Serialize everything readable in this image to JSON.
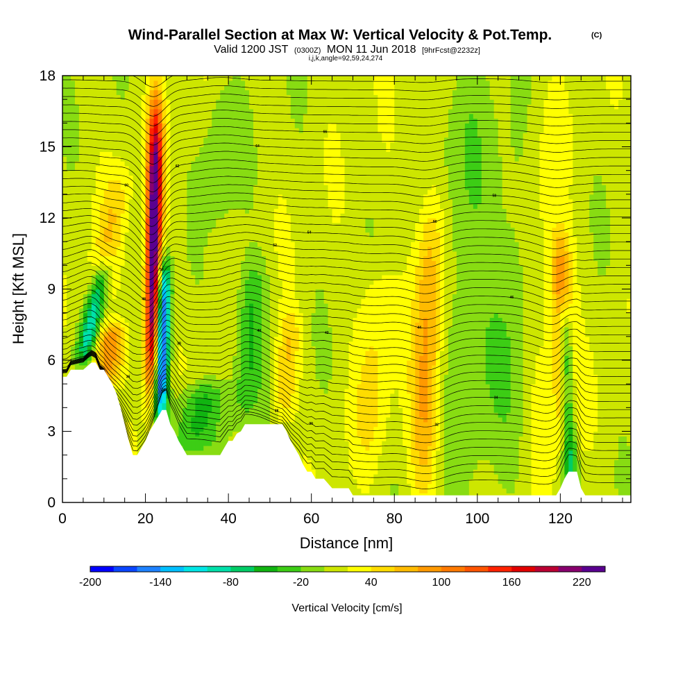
{
  "figure": {
    "title": "Wind-Parallel Section at Max W: Vertical Velocity & Pot.Temp.",
    "title_tag": "(C)",
    "valid_line": {
      "prefix": "Valid 1200 JST",
      "utc": "(0300Z)",
      "date": "MON 11 Jun 2018",
      "forecast": "[9hrFcst@2232z]"
    },
    "grid_info": "i,j,k,angle=92,59,24,274"
  },
  "chart_data": {
    "type": "heatmap",
    "xlabel": "Distance [nm]",
    "ylabel": "Height [Kft MSL]",
    "xlim": [
      0,
      137
    ],
    "ylim": [
      0,
      18
    ],
    "x_ticks": [
      "0",
      "20",
      "40",
      "60",
      "80",
      "100",
      "120"
    ],
    "x_tick_values": [
      0,
      20,
      40,
      60,
      80,
      100,
      120
    ],
    "y_ticks": [
      "0",
      "3",
      "6",
      "9",
      "12",
      "15",
      "18"
    ],
    "y_tick_values": [
      0,
      3,
      6,
      9,
      12,
      15,
      18
    ],
    "x_minor_step": 5,
    "y_minor_step": 1,
    "fill": {
      "variable": "Vertical Velocity",
      "units": "cm/s",
      "background_value": 10,
      "features": [
        {
          "kind": "updraft",
          "x_bottom": 21.5,
          "x_top": 22.5,
          "y_bottom": 5,
          "y_top": 16.5,
          "w": 240,
          "sx": 1.3
        },
        {
          "kind": "downdraft",
          "x_bottom": 23.5,
          "x_top": 24.5,
          "y_bottom": 3.5,
          "y_top": 10,
          "w": -200,
          "sx": 1.2
        },
        {
          "kind": "updraft",
          "x_bottom": 122,
          "x_top": 120,
          "y_bottom": 2,
          "y_top": 11,
          "w": 120,
          "sx": 1.8
        },
        {
          "kind": "downdraft",
          "x_bottom": 122.5,
          "x_top": 121,
          "y_bottom": 0.8,
          "y_top": 8.5,
          "w": -150,
          "sx": 1.3
        },
        {
          "kind": "downdraft",
          "x_bottom": 5,
          "x_top": 10,
          "y_bottom": 6,
          "y_top": 10,
          "w": -110,
          "sx": 1.6
        },
        {
          "kind": "updraft",
          "x_bottom": 10,
          "x_top": 12,
          "y_bottom": 5,
          "y_top": 7.5,
          "w": 90,
          "sx": 2.5
        },
        {
          "kind": "updraft",
          "x_bottom": 8,
          "x_top": 14,
          "y_bottom": 8,
          "y_top": 14,
          "w": 40,
          "sx": 2.5
        },
        {
          "kind": "downdraft",
          "x_bottom": 30,
          "x_top": 34,
          "y_bottom": 2,
          "y_top": 5,
          "w": -60,
          "sx": 4
        },
        {
          "kind": "downdraft",
          "x_bottom": 44,
          "x_top": 46,
          "y_bottom": 3.5,
          "y_top": 10,
          "w": -55,
          "sx": 2.5
        },
        {
          "kind": "updraft",
          "x_bottom": 53,
          "x_top": 55,
          "y_bottom": 3.5,
          "y_top": 8,
          "w": 50,
          "sx": 2
        },
        {
          "kind": "updraft",
          "x_bottom": 87,
          "x_top": 89,
          "y_bottom": 0.5,
          "y_top": 13,
          "w": 75,
          "sx": 2.5
        },
        {
          "kind": "updraft",
          "x_bottom": 74,
          "x_top": 76,
          "y_bottom": 2,
          "y_top": 10,
          "w": 35,
          "sx": 3
        },
        {
          "kind": "downdraft",
          "x_bottom": 98,
          "x_top": 97,
          "y_bottom": 1,
          "y_top": 17,
          "w": -30,
          "sx": 5
        },
        {
          "kind": "downdraft",
          "x_bottom": 110,
          "x_top": 110,
          "y_bottom": 1,
          "y_top": 17,
          "w": -25,
          "sx": 4
        },
        {
          "kind": "downdraft",
          "x_bottom": 37,
          "x_top": 39,
          "y_bottom": 12,
          "y_top": 17.5,
          "w": -30,
          "sx": 3
        },
        {
          "kind": "updraft",
          "x_bottom": 115,
          "x_top": 115,
          "y_bottom": 1,
          "y_top": 17,
          "w": 25,
          "sx": 3
        }
      ]
    },
    "contours": {
      "variable": "Pot.Temp.",
      "units": "C",
      "base_value": 24,
      "interval": 1,
      "count": 50,
      "top_value": 73,
      "labels": [
        "24",
        "26",
        "28",
        "30",
        "32",
        "34",
        "36",
        "38",
        "40",
        "42",
        "44",
        "46",
        "48",
        "50",
        "52",
        "54",
        "56",
        "58",
        "60",
        "62",
        "64",
        "66"
      ]
    },
    "terrain": {
      "profile_x": [
        0,
        1,
        2,
        5,
        7,
        8,
        9,
        10,
        11,
        12,
        13,
        14,
        15,
        16,
        17,
        18,
        19,
        20,
        21,
        22,
        23,
        24,
        25,
        26,
        27,
        28,
        29,
        30,
        31,
        32,
        33,
        34,
        35,
        36,
        37,
        38,
        39,
        40,
        41,
        42,
        43,
        44,
        45,
        46,
        50,
        53,
        54,
        55,
        56,
        57,
        58,
        59,
        60,
        61,
        63,
        65,
        67,
        69,
        70,
        75,
        80,
        85,
        90,
        95,
        100,
        105,
        110,
        118,
        119,
        120,
        121,
        122,
        124,
        125,
        126,
        127,
        137
      ],
      "profile_y": [
        5.3,
        5.3,
        5.6,
        5.6,
        5.9,
        5.9,
        5.6,
        5.6,
        5.3,
        5.0,
        4.6,
        4.0,
        3.3,
        2.6,
        2.0,
        2.0,
        2.3,
        2.6,
        3.0,
        3.3,
        3.6,
        3.9,
        3.9,
        3.3,
        3.0,
        2.6,
        2.3,
        2.0,
        2.0,
        2.0,
        2.0,
        2.0,
        2.0,
        2.0,
        2.0,
        2.0,
        2.3,
        2.6,
        2.6,
        2.9,
        3.0,
        3.3,
        3.3,
        3.3,
        3.3,
        3.3,
        3.0,
        2.6,
        2.3,
        2.0,
        1.6,
        1.3,
        1.3,
        1.0,
        1.0,
        0.6,
        0.6,
        0.6,
        0.3,
        0.3,
        0.3,
        0.3,
        0.3,
        0.3,
        0.3,
        0.3,
        0.3,
        0.3,
        0.3,
        0.6,
        1.0,
        1.3,
        1.3,
        0.6,
        0.3,
        0.3,
        0.3
      ]
    },
    "colorbar": {
      "title": "Vertical Velocity [cm/s]",
      "min": -200,
      "max": 240,
      "step": 20,
      "tick_labels": [
        "-200",
        "-140",
        "-80",
        "-20",
        "40",
        "100",
        "160",
        "220"
      ],
      "tick_values": [
        -200,
        -140,
        -80,
        -20,
        40,
        100,
        160,
        220
      ],
      "colors": [
        "#0000ff",
        "#0a46ff",
        "#1e82ff",
        "#00bfff",
        "#00e6e6",
        "#00e0aa",
        "#00cc66",
        "#11b411",
        "#3ccd15",
        "#88dc12",
        "#cde600",
        "#ffff00",
        "#ffdc00",
        "#ffbb00",
        "#ff9900",
        "#ff7a00",
        "#ff5500",
        "#ff2200",
        "#e20000",
        "#bb0033",
        "#88006e",
        "#5a0090"
      ]
    }
  }
}
